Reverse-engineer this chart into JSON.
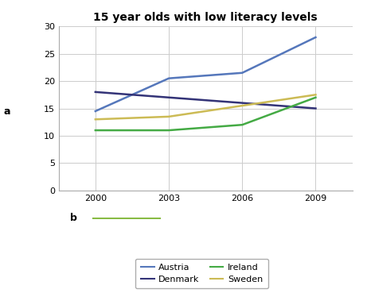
{
  "title": "15 year olds with low literacy levels",
  "years": [
    2000,
    2003,
    2006,
    2009
  ],
  "series": {
    "Austria": {
      "values": [
        14.5,
        20.5,
        21.5,
        28.0
      ],
      "color": "#5577BB",
      "linewidth": 1.8
    },
    "Denmark": {
      "values": [
        18.0,
        17.0,
        16.0,
        15.0
      ],
      "color": "#333377",
      "linewidth": 1.8
    },
    "Ireland": {
      "values": [
        11.0,
        11.0,
        12.0,
        17.0
      ],
      "color": "#44AA44",
      "linewidth": 1.8
    },
    "Sweden": {
      "values": [
        13.0,
        13.5,
        15.5,
        17.5
      ],
      "color": "#CCBB55",
      "linewidth": 1.8
    }
  },
  "ylim": [
    0,
    30
  ],
  "yticks": [
    0,
    5,
    10,
    15,
    20,
    25,
    30
  ],
  "xticks": [
    2000,
    2003,
    2006,
    2009
  ],
  "ylabel_label": "a",
  "xlabel_label": "b",
  "b_line_color": "#88BB44",
  "grid_color": "#cccccc",
  "bg_color": "#ffffff",
  "plot_bg_color": "#ffffff",
  "spine_color": "#aaaaaa",
  "title_fontsize": 10,
  "tick_fontsize": 8,
  "legend_fontsize": 8,
  "legend_order": [
    "Austria",
    "Denmark",
    "Ireland",
    "Sweden"
  ]
}
